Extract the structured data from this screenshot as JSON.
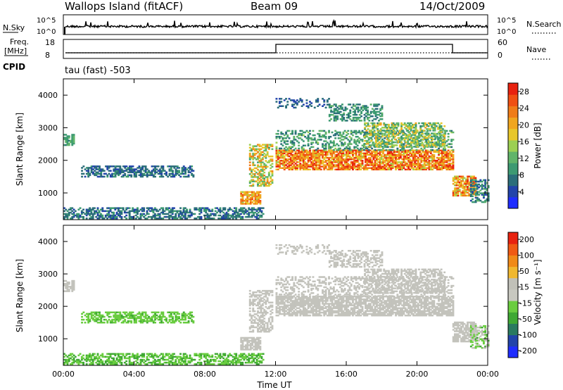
{
  "header": {
    "station": "Wallops Island (fitACF)",
    "beam": "Beam 09",
    "date": "14/Oct/2009"
  },
  "noise_panel": {
    "left_label": "N.Sky",
    "right_label": "N.Search",
    "left_ticks": [
      "10^5",
      "10^0"
    ],
    "right_ticks": [
      "10^5",
      "10^0"
    ]
  },
  "freq_panel": {
    "left_label_1": "Freq.",
    "left_label_2": "[MHz]",
    "right_label": "Nave",
    "left_ticks": [
      "18",
      "8"
    ],
    "right_ticks": [
      "60",
      "0"
    ],
    "cpid_label": "CPID",
    "cpid_value": "tau (fast) -503"
  },
  "colors": {
    "power": [
      "#1f2dff",
      "#2244aa",
      "#2b6e7a",
      "#3d9a72",
      "#61b46a",
      "#9ccf52",
      "#e8c62a",
      "#f0a61f",
      "#f07c18",
      "#f05013",
      "#e8220f"
    ],
    "velocity": [
      "#e8220f",
      "#f05a13",
      "#f08a18",
      "#f0b830",
      "#c0c0b8",
      "#c8c8c0",
      "#6acd40",
      "#3fa834",
      "#2a7a60",
      "#2244aa",
      "#1f2dff"
    ],
    "trace": "#000000",
    "ground_scatter": "#c3c3bc"
  },
  "chart_data": [
    {
      "type": "heatmap",
      "name": "power",
      "ylabel": "Slant Range [km]",
      "yticks": [
        "1000",
        "2000",
        "3000",
        "4000"
      ],
      "ylim": [
        180,
        4500
      ],
      "colorbar_label": "Power [dB]",
      "colorbar_ticks": [
        "4",
        "8",
        "12",
        "16",
        "20",
        "24",
        "28"
      ],
      "colorbar_range": [
        0,
        30
      ]
    },
    {
      "type": "heatmap",
      "name": "velocity",
      "ylabel": "Slant Range [km]",
      "yticks": [
        "1000",
        "2000",
        "3000",
        "4000"
      ],
      "ylim": [
        180,
        4500
      ],
      "colorbar_label": "Velocity [m s⁻¹]",
      "colorbar_ticks": [
        "200",
        "100",
        "50",
        "15",
        "-15",
        "-50",
        "-100",
        "-200"
      ],
      "xlabel": "Time UT",
      "xticks": [
        "00:00",
        "04:00",
        "08:00",
        "12:00",
        "16:00",
        "20:00",
        "00:00"
      ],
      "xlim_hours": [
        0,
        24
      ]
    }
  ]
}
